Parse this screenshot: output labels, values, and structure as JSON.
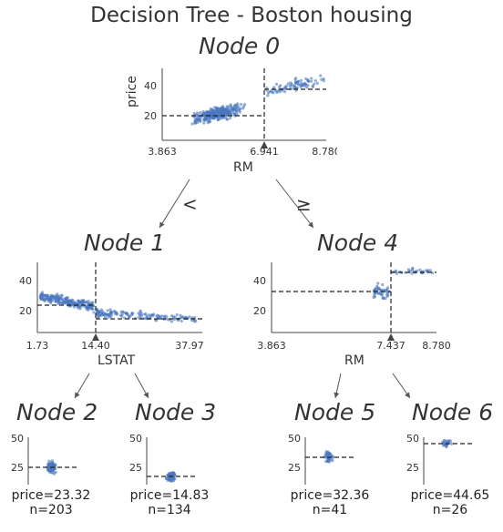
{
  "title": "Decision Tree - Boston housing",
  "colors": {
    "point": "#4a78c0",
    "axis": "#444444",
    "text": "#333333"
  },
  "root": {
    "name": "Node 0",
    "feature": "RM",
    "ylabel": "price",
    "x_ticks": [
      "3.863",
      "6.941",
      "8.780"
    ],
    "y_ticks": [
      "20",
      "40"
    ],
    "split_label": "6.941",
    "left_mean": 19.9,
    "right_mean": 37.2
  },
  "edges": {
    "left": "<",
    "right": "≥"
  },
  "node1": {
    "name": "Node 1",
    "feature": "LSTAT",
    "x_ticks": [
      "1.73",
      "14.40",
      "37.97"
    ],
    "y_ticks": [
      "20",
      "40"
    ],
    "left_mean": 23.3,
    "right_mean": 14.8
  },
  "node4": {
    "name": "Node 4",
    "feature": "RM",
    "x_ticks": [
      "3.863",
      "7.437",
      "8.780"
    ],
    "y_ticks": [
      "20",
      "40"
    ],
    "left_mean": 32.4,
    "right_mean": 44.7
  },
  "leaves": [
    {
      "name": "Node 2",
      "price": "price=23.32",
      "n": "n=203",
      "mean": 23.32,
      "y_ticks": [
        "25",
        "50"
      ]
    },
    {
      "name": "Node 3",
      "price": "price=14.83",
      "n": "n=134",
      "mean": 14.83,
      "y_ticks": [
        "25",
        "50"
      ]
    },
    {
      "name": "Node 5",
      "price": "price=32.36",
      "n": "n=41",
      "mean": 32.36,
      "y_ticks": [
        "25",
        "50"
      ]
    },
    {
      "name": "Node 6",
      "price": "price=44.65",
      "n": "n=26",
      "mean": 44.65,
      "y_ticks": [
        "25",
        "50"
      ]
    }
  ]
}
